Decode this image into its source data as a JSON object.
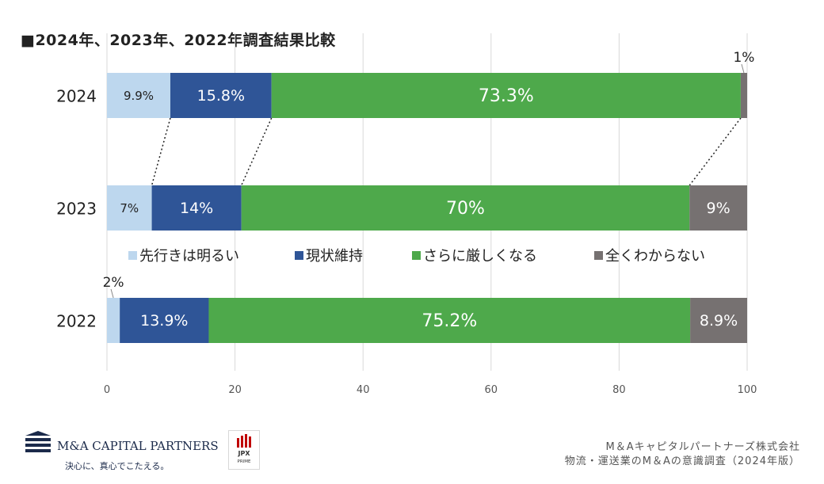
{
  "title": "■2024年、2023年、2022年調査結果比較",
  "chart_data": {
    "type": "bar",
    "orientation": "horizontal",
    "stacked": true,
    "categories": [
      "2024",
      "2023",
      "2022"
    ],
    "series": [
      {
        "name": "先行きは明るい",
        "color": "#bdd7ee",
        "values": [
          9.9,
          7,
          2
        ],
        "labels": [
          "9.9%",
          "7%",
          "2%"
        ]
      },
      {
        "name": "現状維持",
        "color": "#2f5597",
        "values": [
          15.8,
          14,
          13.9
        ],
        "labels": [
          "15.8%",
          "14%",
          "13.9%"
        ]
      },
      {
        "name": "さらに厳しくなる",
        "color": "#4ea94b",
        "values": [
          73.3,
          70,
          75.2
        ],
        "labels": [
          "73.3%",
          "70%",
          "75.2%"
        ]
      },
      {
        "name": "全くわからない",
        "color": "#767171",
        "values": [
          1,
          9,
          8.9
        ],
        "labels": [
          "1%",
          "9%",
          "8.9%"
        ]
      }
    ],
    "xlim": [
      0,
      100
    ],
    "xticks": [
      "0",
      "20",
      "40",
      "60",
      "80",
      "100"
    ],
    "grid": true,
    "legend_position": "between-2023-and-2022"
  },
  "footer": {
    "company_name": "M&A CAPITAL PARTNERS",
    "tagline": "決心に、真心でこたえる。",
    "jpx_text": "JPX",
    "jpx_sub": "PRIME",
    "source_line1": "M＆Aキャピタルパートナーズ株式会社",
    "source_line2": "物流・運送業のM＆Aの意識調査（2024年版）"
  }
}
